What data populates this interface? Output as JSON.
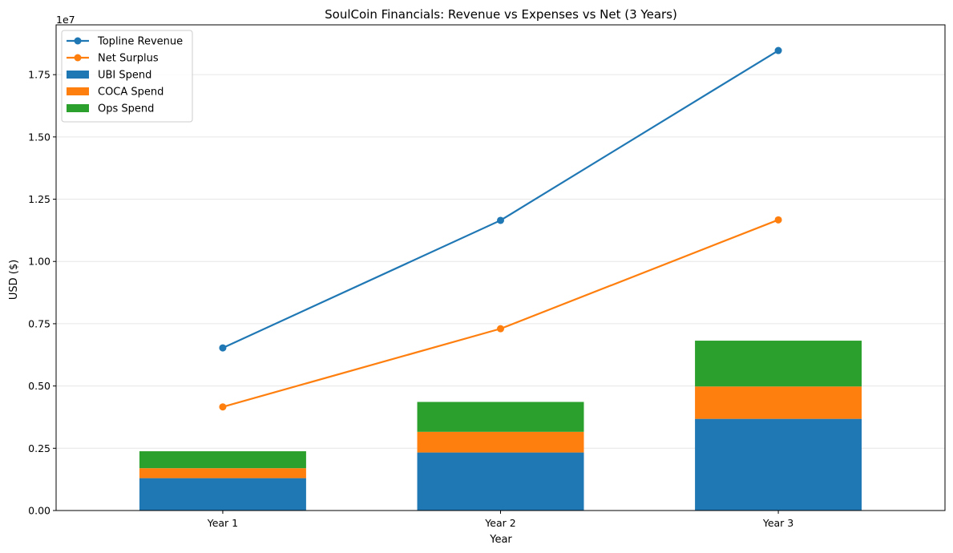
{
  "chart_data": {
    "type": "bar",
    "title": "SoulCoin Financials: Revenue vs Expenses vs Net (3 Years)",
    "xlabel": "Year",
    "ylabel": "USD ($)",
    "offset_label": "1e7",
    "categories": [
      "Year 1",
      "Year 2",
      "Year 3"
    ],
    "ylim": [
      0,
      19500000
    ],
    "yticks": [
      0,
      2500000,
      5000000,
      7500000,
      10000000,
      12500000,
      15000000,
      17500000
    ],
    "ytick_labels": [
      "0.00",
      "0.25",
      "0.50",
      "0.75",
      "1.00",
      "1.25",
      "1.50",
      "1.75"
    ],
    "grid": "y",
    "legend_position": "top-left",
    "stacked_bars": [
      {
        "name": "UBI Spend",
        "color": "#1f77b4",
        "values": [
          1300000,
          2330000,
          3680000
        ]
      },
      {
        "name": "COCA Spend",
        "color": "#ff7f0e",
        "values": [
          400000,
          830000,
          1300000
        ]
      },
      {
        "name": "Ops Spend",
        "color": "#2ca02c",
        "values": [
          680000,
          1200000,
          1840000
        ]
      }
    ],
    "lines": [
      {
        "name": "Topline Revenue",
        "color": "#1f77b4",
        "values": [
          6530000,
          11650000,
          18470000
        ]
      },
      {
        "name": "Net Surplus",
        "color": "#ff7f0e",
        "values": [
          4160000,
          7300000,
          11670000
        ]
      }
    ]
  }
}
